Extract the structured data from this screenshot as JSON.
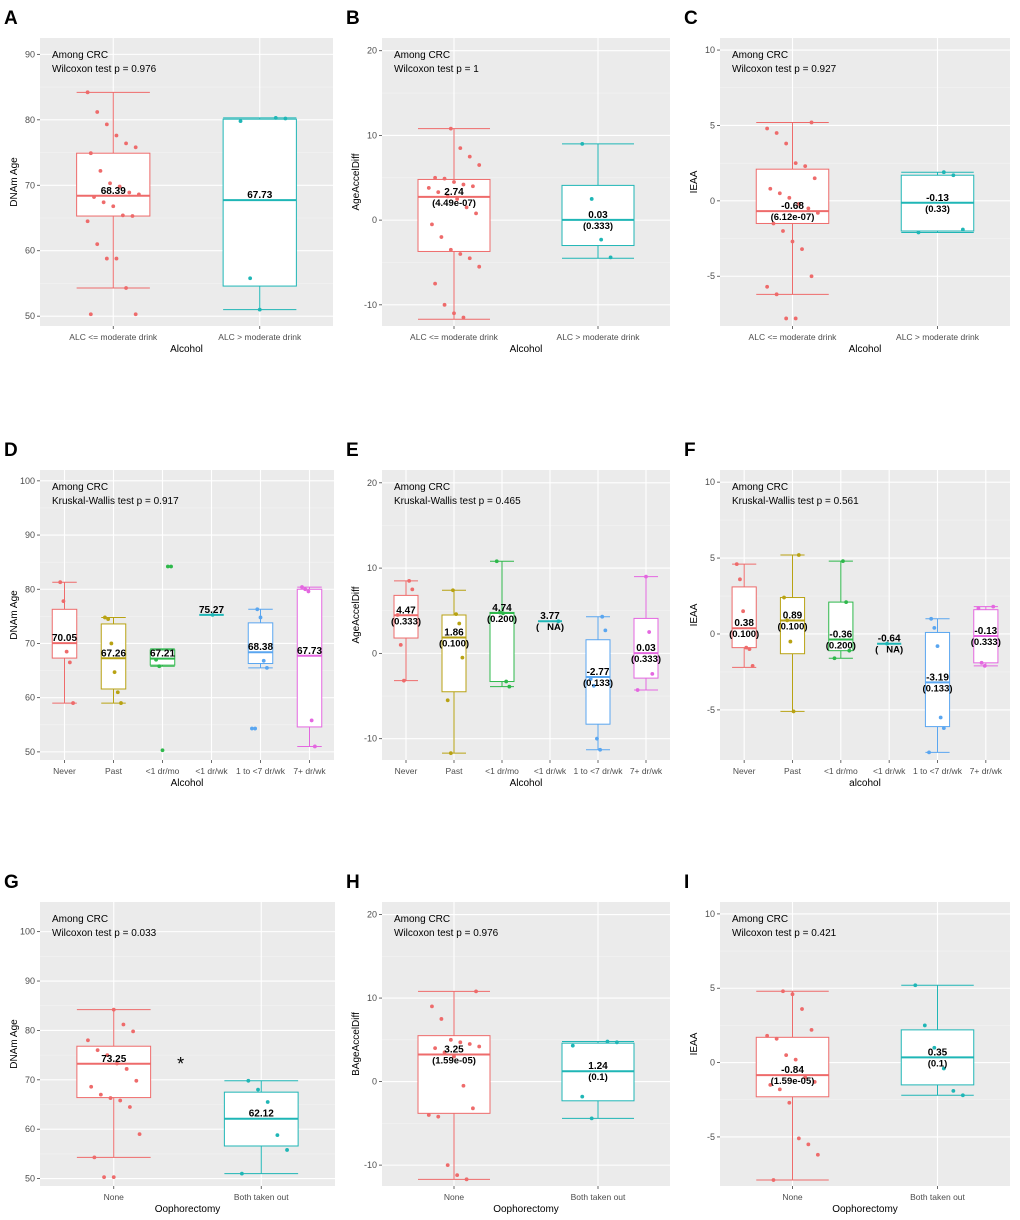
{
  "chart_data": [
    {
      "label": "A",
      "type": "box",
      "title": "Among CRC",
      "test": "Wilcoxon test p = 0.976",
      "xlabel": "Alcohol",
      "ylabel": "DNAm Age",
      "ylim": [
        48.5,
        92.5
      ],
      "yticks": [
        50,
        60,
        70,
        80,
        90
      ],
      "categories": [
        "ALC <= moderate drink",
        "ALC > moderate drink"
      ],
      "groups": [
        {
          "name": "ALC <= moderate drink",
          "color": "#ee6b6b",
          "min": 54.3,
          "q1": 65.3,
          "median": 68.39,
          "q3": 74.9,
          "max": 84.2,
          "label": "68.39",
          "points": [
            84.2,
            81.2,
            79.3,
            77.6,
            76.4,
            75.8,
            74.9,
            72.2,
            70.3,
            69.8,
            68.9,
            68.6,
            68.2,
            67.4,
            66.8,
            65.4,
            65.3,
            64.5,
            61.0,
            58.8,
            58.8,
            54.3,
            50.3,
            50.3
          ]
        },
        {
          "name": "ALC > moderate drink",
          "color": "#1fb6b6",
          "min": 51.0,
          "q1": 54.6,
          "median": 67.73,
          "q3": 80.1,
          "max": 80.3,
          "label": "67.73",
          "points": [
            80.3,
            80.2,
            79.8,
            55.8,
            51.0
          ]
        }
      ]
    },
    {
      "label": "B",
      "type": "box",
      "title": "Among CRC",
      "test": "Wilcoxon test p = 1",
      "xlabel": "Alcohol",
      "ylabel": "AgeAccelDiff",
      "ylim": [
        -12.5,
        21.5
      ],
      "yticks": [
        -10,
        0,
        10,
        20
      ],
      "categories": [
        "ALC <= moderate drink",
        "ALC > moderate drink"
      ],
      "groups": [
        {
          "name": "ALC <= moderate drink",
          "color": "#ee6b6b",
          "min": -11.7,
          "q1": -3.7,
          "median": 2.74,
          "q3": 4.8,
          "max": 10.8,
          "label": "2.74",
          "sublabel": "(4.49e-07)",
          "points": [
            10.8,
            8.5,
            7.5,
            6.5,
            5.0,
            4.9,
            4.5,
            4.2,
            4.0,
            3.8,
            3.3,
            2.8,
            2.5,
            1.5,
            0.8,
            -0.5,
            -2.0,
            -3.5,
            -4.0,
            -4.5,
            -5.5,
            -7.5,
            -10.0,
            -11.0,
            -11.5
          ]
        },
        {
          "name": "ALC > moderate drink",
          "color": "#1fb6b6",
          "min": -4.5,
          "q1": -3.0,
          "median": 0.03,
          "q3": 4.1,
          "max": 9.0,
          "label": "0.03",
          "sublabel": "(0.333)",
          "points": [
            9.0,
            2.5,
            -2.3,
            -4.4
          ]
        }
      ]
    },
    {
      "label": "C",
      "type": "box",
      "title": "Among CRC",
      "test": "Wilcoxon test p = 0.927",
      "xlabel": "Alcohol",
      "ylabel": "IEAA",
      "ylim": [
        -8.3,
        10.8
      ],
      "yticks": [
        -5,
        0,
        5,
        10
      ],
      "categories": [
        "ALC <= moderate drink",
        "ALC > moderate drink"
      ],
      "groups": [
        {
          "name": "ALC <= moderate drink",
          "color": "#ee6b6b",
          "min": -6.2,
          "q1": -1.5,
          "median": -0.68,
          "q3": 2.1,
          "max": 5.2,
          "label": "-0.68",
          "sublabel": "(6.12e-07)",
          "points": [
            5.2,
            4.8,
            4.5,
            3.8,
            2.5,
            2.3,
            1.5,
            0.8,
            0.5,
            0.2,
            -0.2,
            -0.5,
            -0.8,
            -1.5,
            -2.0,
            -2.7,
            -3.2,
            -5.0,
            -5.7,
            -6.2,
            -7.8,
            -7.8
          ]
        },
        {
          "name": "ALC > moderate drink",
          "color": "#1fb6b6",
          "min": -2.1,
          "q1": -2.0,
          "median": -0.13,
          "q3": 1.7,
          "max": 1.9,
          "label": "-0.13",
          "sublabel": "(0.33)",
          "points": [
            1.9,
            1.7,
            -1.9,
            -2.1
          ]
        }
      ]
    },
    {
      "label": "D",
      "type": "box",
      "title": "Among CRC",
      "test": "Kruskal-Wallis test p = 0.917",
      "xlabel": "Alcohol",
      "ylabel": "DNAm Age",
      "ylim": [
        48.5,
        102
      ],
      "yticks": [
        50,
        60,
        70,
        80,
        90,
        100
      ],
      "categories": [
        "Never",
        "Past",
        "<1 dr/mo",
        "<1 dr/wk",
        "1 to <7 dr/wk",
        "7+ dr/wk"
      ],
      "groups": [
        {
          "name": "Never",
          "color": "#ee6b6b",
          "min": 59.0,
          "q1": 67.3,
          "median": 70.05,
          "q3": 76.3,
          "max": 81.3,
          "label": "70.05",
          "points": [
            81.3,
            77.8,
            68.5,
            66.5,
            59.0
          ]
        },
        {
          "name": "Past",
          "color": "#b8a213",
          "min": 59.0,
          "q1": 61.6,
          "median": 67.26,
          "q3": 73.6,
          "max": 74.8,
          "label": "67.26",
          "points": [
            74.8,
            74.5,
            70.0,
            64.7,
            61.0,
            59.0
          ]
        },
        {
          "name": "<1 dr/mo",
          "color": "#2eb84b",
          "min": 65.8,
          "q1": 66.0,
          "median": 67.21,
          "q3": 68.8,
          "max": 69.0,
          "label": "67.21",
          "points": [
            84.2,
            84.2,
            67.0,
            65.8,
            50.3
          ]
        },
        {
          "name": "<1 dr/wk",
          "color": "#1fb6b6",
          "min": 75.27,
          "q1": 75.27,
          "median": 75.27,
          "q3": 75.27,
          "max": 75.27,
          "label": "75.27",
          "points": [
            75.27
          ]
        },
        {
          "name": "1 to <7 dr/wk",
          "color": "#5aa6f0",
          "min": 65.5,
          "q1": 66.3,
          "median": 68.38,
          "q3": 73.8,
          "max": 76.3,
          "label": "68.38",
          "points": [
            76.3,
            74.8,
            66.8,
            65.5,
            54.3,
            54.3
          ]
        },
        {
          "name": "7+ dr/wk",
          "color": "#e467e0",
          "min": 51.0,
          "q1": 54.6,
          "median": 67.73,
          "q3": 80.0,
          "max": 80.4,
          "label": "67.73",
          "points": [
            80.4,
            80.0,
            79.6,
            55.8,
            51.0
          ]
        }
      ]
    },
    {
      "label": "E",
      "type": "box",
      "title": "Among CRC",
      "test": "Kruskal-Wallis test p = 0.465",
      "xlabel": "Alcohol",
      "ylabel": "AgeAccelDiff",
      "ylim": [
        -12.5,
        21.5
      ],
      "yticks": [
        -10,
        0,
        10,
        20
      ],
      "categories": [
        "Never",
        "Past",
        "<1 dr/mo",
        "<1 dr/wk",
        "1 to <7 dr/wk",
        "7+ dr/wk"
      ],
      "groups": [
        {
          "name": "Never",
          "color": "#ee6b6b",
          "min": -3.2,
          "q1": 1.8,
          "median": 4.47,
          "q3": 6.8,
          "max": 8.5,
          "label": "4.47",
          "sublabel": "(0.333)",
          "points": [
            8.5,
            7.5,
            4.5,
            1.0,
            -3.2
          ]
        },
        {
          "name": "Past",
          "color": "#b8a213",
          "min": -11.7,
          "q1": -4.5,
          "median": 1.86,
          "q3": 4.5,
          "max": 7.4,
          "label": "1.86",
          "sublabel": "(0.100)",
          "points": [
            7.4,
            4.6,
            3.5,
            -0.5,
            -5.5,
            -11.7
          ]
        },
        {
          "name": "<1 dr/mo",
          "color": "#2eb84b",
          "min": -3.9,
          "q1": -3.3,
          "median": 4.74,
          "q3": 4.8,
          "max": 10.8,
          "label": "4.74",
          "sublabel": "(0.200)",
          "points": [
            10.8,
            4.8,
            4.7,
            -3.3,
            -3.9
          ]
        },
        {
          "name": "<1 dr/wk",
          "color": "#1fb6b6",
          "min": 3.77,
          "q1": 3.77,
          "median": 3.77,
          "q3": 3.77,
          "max": 3.77,
          "label": "3.77",
          "sublabel": "(   NA)",
          "points": [
            3.77
          ]
        },
        {
          "name": "1 to <7 dr/wk",
          "color": "#5aa6f0",
          "min": -11.3,
          "q1": -8.3,
          "median": -2.77,
          "q3": 1.6,
          "max": 4.3,
          "label": "-2.77",
          "sublabel": "(0.133)",
          "points": [
            4.3,
            2.7,
            -3.0,
            -3.8,
            -10.0,
            -11.3
          ]
        },
        {
          "name": "7+ dr/wk",
          "color": "#e467e0",
          "min": -4.3,
          "q1": -2.9,
          "median": 0.03,
          "q3": 4.1,
          "max": 9.0,
          "label": "0.03",
          "sublabel": "(0.333)",
          "points": [
            9.0,
            2.5,
            -2.4,
            -4.3
          ]
        }
      ]
    },
    {
      "label": "F",
      "type": "box",
      "title": "Among CRC",
      "test": "Kruskal-Wallis test p = 0.561",
      "xlabel": "alcohol",
      "ylabel": "IEAA",
      "ylim": [
        -8.3,
        10.8
      ],
      "yticks": [
        -5,
        0,
        5,
        10
      ],
      "categories": [
        "Never",
        "Past",
        "<1 dr/mo",
        "<1 dr/wk",
        "1 to <7 dr/wk",
        "7+ dr/wk"
      ],
      "groups": [
        {
          "name": "Never",
          "color": "#ee6b6b",
          "min": -2.2,
          "q1": -0.9,
          "median": 0.38,
          "q3": 3.1,
          "max": 4.6,
          "label": "0.38",
          "sublabel": "(0.100)",
          "points": [
            4.6,
            3.6,
            1.5,
            -0.9,
            -1.0,
            -2.1
          ]
        },
        {
          "name": "Past",
          "color": "#b8a213",
          "min": -5.1,
          "q1": -1.3,
          "median": 0.89,
          "q3": 2.4,
          "max": 5.2,
          "label": "0.89",
          "sublabel": "(0.100)",
          "points": [
            5.2,
            2.4,
            0.9,
            -0.5,
            -5.1
          ]
        },
        {
          "name": "<1 dr/mo",
          "color": "#2eb84b",
          "min": -1.6,
          "q1": -1.1,
          "median": -0.36,
          "q3": 2.1,
          "max": 4.8,
          "label": "-0.36",
          "sublabel": "(0.200)",
          "points": [
            4.8,
            2.1,
            -1.1,
            -1.6
          ]
        },
        {
          "name": "<1 dr/wk",
          "color": "#1fb6b6",
          "min": -0.64,
          "q1": -0.64,
          "median": -0.64,
          "q3": -0.64,
          "max": -0.64,
          "label": "-0.64",
          "sublabel": "(   NA)",
          "points": [
            -0.64
          ]
        },
        {
          "name": "1 to <7 dr/wk",
          "color": "#5aa6f0",
          "min": -7.8,
          "q1": -6.1,
          "median": -3.19,
          "q3": 0.1,
          "max": 1.0,
          "label": "-3.19",
          "sublabel": "(0.133)",
          "points": [
            1.0,
            0.4,
            -0.8,
            -5.5,
            -6.2,
            -7.8
          ]
        },
        {
          "name": "7+ dr/wk",
          "color": "#e467e0",
          "min": -2.1,
          "q1": -1.9,
          "median": -0.13,
          "q3": 1.6,
          "max": 1.8,
          "label": "-0.13",
          "sublabel": "(0.333)",
          "points": [
            1.8,
            1.7,
            -1.9,
            -2.1
          ]
        }
      ]
    },
    {
      "label": "G",
      "type": "box",
      "title": "Among CRC",
      "test": "Wilcoxon test p = 0.033",
      "significance": "*",
      "xlabel": "Oophorectomy",
      "ylabel": "DNAm Age",
      "ylim": [
        48.5,
        106
      ],
      "yticks": [
        50,
        60,
        70,
        80,
        90,
        100
      ],
      "categories": [
        "None",
        "Both taken out"
      ],
      "groups": [
        {
          "name": "None",
          "color": "#ee6b6b",
          "min": 54.3,
          "q1": 66.4,
          "median": 73.25,
          "q3": 76.8,
          "max": 84.2,
          "label": "73.25",
          "points": [
            84.2,
            81.2,
            79.8,
            78.0,
            76.0,
            75.0,
            73.3,
            72.2,
            69.8,
            68.6,
            67.0,
            66.3,
            65.8,
            64.5,
            59.0,
            54.3,
            50.3,
            50.3
          ]
        },
        {
          "name": "Both taken out",
          "color": "#1fb6b6",
          "min": 51.0,
          "q1": 56.6,
          "median": 62.12,
          "q3": 67.5,
          "max": 69.8,
          "label": "62.12",
          "points": [
            69.8,
            68.0,
            65.5,
            58.8,
            55.8,
            51.0
          ]
        }
      ]
    },
    {
      "label": "H",
      "type": "box",
      "title": "Among CRC",
      "test": "Wilcoxon test p = 0.976",
      "xlabel": "Oophorectomy",
      "ylabel": "BAgeAccelDiff",
      "ylim": [
        -12.5,
        21.5
      ],
      "yticks": [
        -10,
        0,
        10,
        20
      ],
      "categories": [
        "None",
        "Both taken out"
      ],
      "groups": [
        {
          "name": "None",
          "color": "#ee6b6b",
          "min": -11.7,
          "q1": -3.8,
          "median": 3.25,
          "q3": 5.5,
          "max": 10.8,
          "label": "3.25",
          "sublabel": "(1.59e-05)",
          "points": [
            10.8,
            9.0,
            7.5,
            5.0,
            4.7,
            4.5,
            4.2,
            4.0,
            3.5,
            3.0,
            -0.5,
            -3.2,
            -4.0,
            -4.2,
            -10.0,
            -11.2,
            -11.7
          ]
        },
        {
          "name": "Both taken out",
          "color": "#1fb6b6",
          "min": -4.4,
          "q1": -2.3,
          "median": 1.24,
          "q3": 4.6,
          "max": 4.8,
          "label": "1.24",
          "sublabel": "(0.1)",
          "points": [
            4.8,
            4.7,
            4.3,
            -1.8,
            -4.4
          ]
        }
      ]
    },
    {
      "label": "I",
      "type": "box",
      "title": "Among CRC",
      "test": "Wilcoxon test p = 0.421",
      "xlabel": "Oophorectomy",
      "ylabel": "IEAA",
      "ylim": [
        -8.3,
        10.8
      ],
      "yticks": [
        -5,
        0,
        5,
        10
      ],
      "categories": [
        "None",
        "Both taken out"
      ],
      "groups": [
        {
          "name": "None",
          "color": "#ee6b6b",
          "min": -7.9,
          "q1": -2.3,
          "median": -0.84,
          "q3": 1.7,
          "max": 4.8,
          "label": "-0.84",
          "sublabel": "(1.59e-05)",
          "points": [
            4.8,
            4.6,
            3.6,
            2.2,
            1.8,
            1.6,
            0.5,
            0.2,
            -1.0,
            -1.3,
            -1.5,
            -1.8,
            -2.7,
            -5.1,
            -5.5,
            -6.2,
            -7.9
          ]
        },
        {
          "name": "Both taken out",
          "color": "#1fb6b6",
          "min": -2.2,
          "q1": -1.5,
          "median": 0.35,
          "q3": 2.2,
          "max": 5.2,
          "label": "0.35",
          "sublabel": "(0.1)",
          "points": [
            5.2,
            2.5,
            1.0,
            -0.4,
            -1.9,
            -2.2
          ]
        }
      ]
    }
  ]
}
